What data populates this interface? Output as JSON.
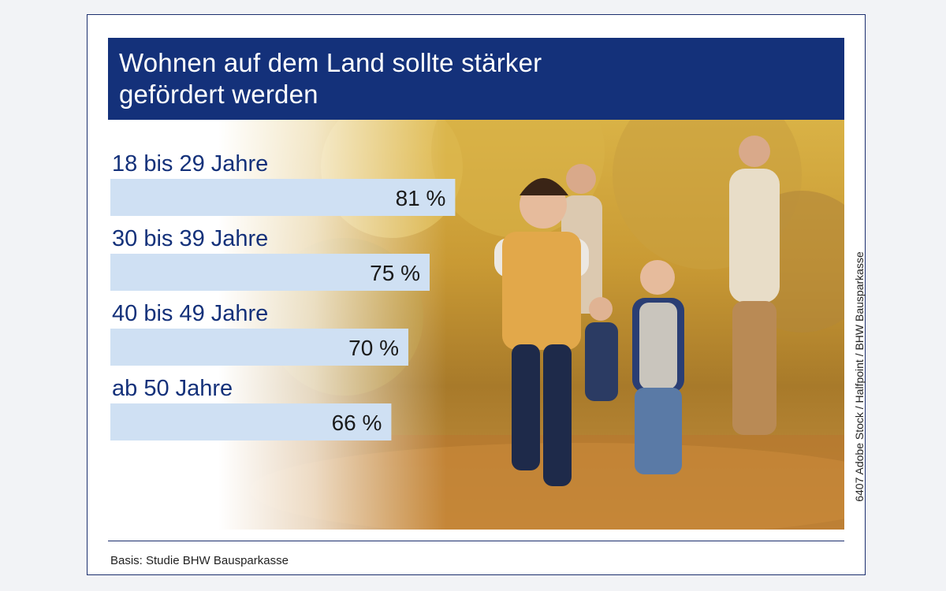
{
  "title": {
    "line1": "Wohnen auf dem Land sollte stärker",
    "line2": "gefördert werden"
  },
  "chart_data": {
    "type": "bar",
    "orientation": "horizontal",
    "categories": [
      "18 bis 29 Jahre",
      "30 bis 39 Jahre",
      "40 bis 49 Jahre",
      "ab 50 Jahre"
    ],
    "values": [
      81,
      75,
      70,
      66
    ],
    "value_labels": [
      "81 %",
      "75 %",
      "70 %",
      "66 %"
    ],
    "unit": "%",
    "bar_color": "#cfe0f3",
    "label_color": "#14317a",
    "title": "Wohnen auf dem Land sollte stärker gefördert werden",
    "grid": false,
    "legend": "none"
  },
  "source": "Basis: Studie BHW Bausparkasse",
  "credit": "6407 Adobe Stock / Halfpoint / BHW Bausparkasse",
  "colors": {
    "title_background": "#14317a",
    "frame": "#1b2e6e",
    "bar": "#cfe0f3"
  }
}
